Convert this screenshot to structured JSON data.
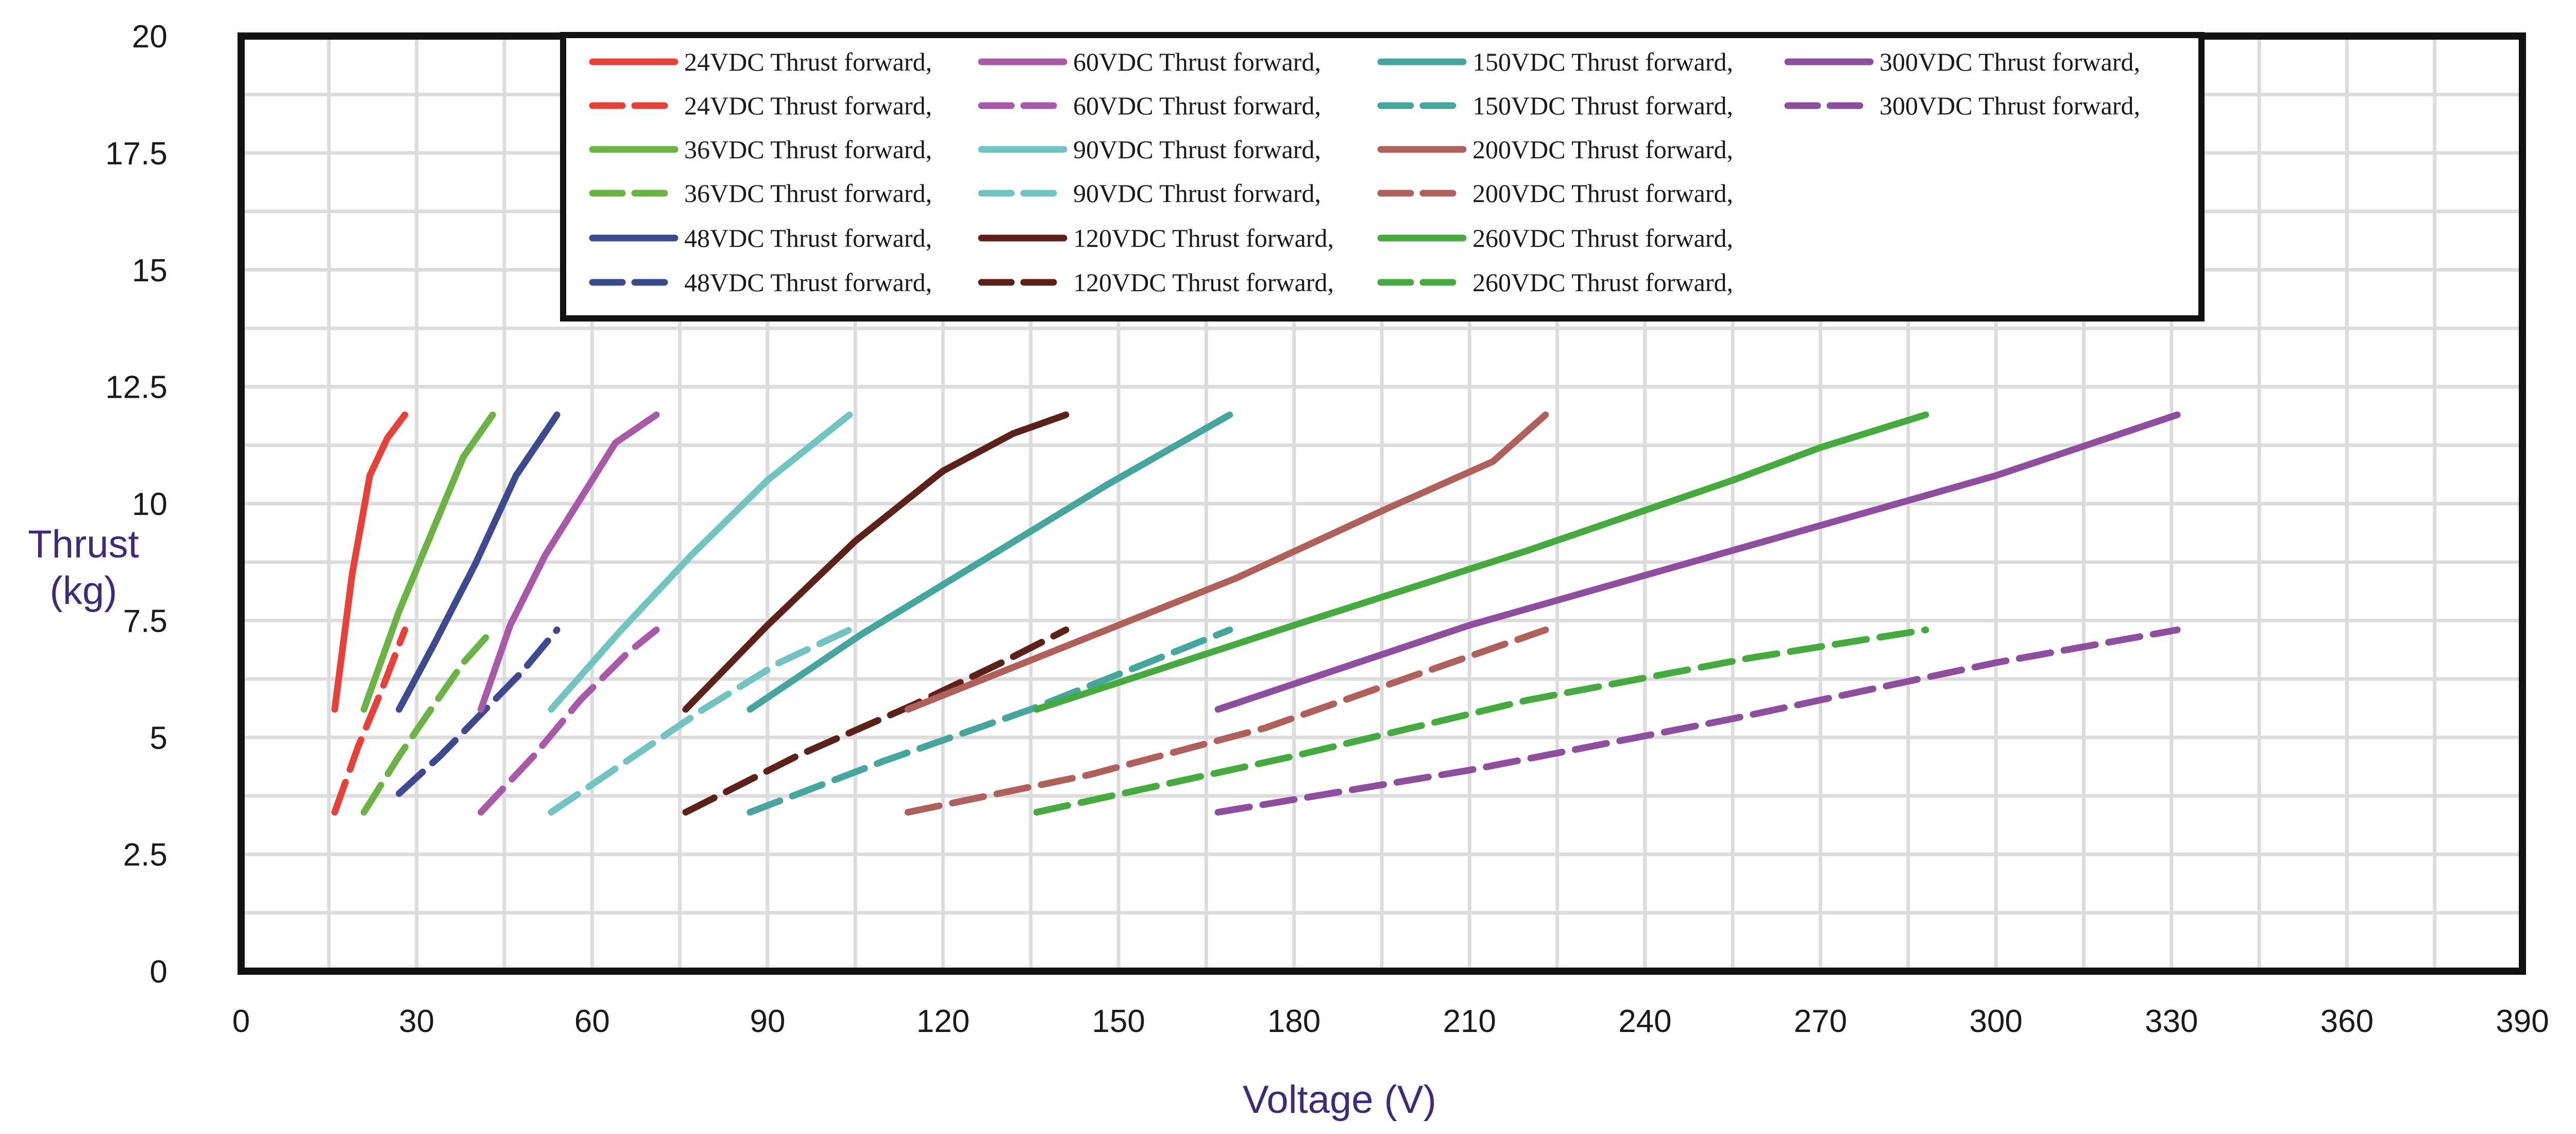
{
  "chart_data": {
    "type": "line",
    "title": "",
    "xlabel": "Voltage (V)",
    "ylabel_lines": [
      "Thrust",
      "(kg)"
    ],
    "xlim": [
      0,
      390
    ],
    "ylim": [
      0,
      20
    ],
    "x_ticks": [
      0,
      30,
      60,
      90,
      120,
      150,
      180,
      210,
      240,
      270,
      300,
      330,
      360,
      390
    ],
    "y_ticks": [
      0,
      2.5,
      5,
      7.5,
      10,
      12.5,
      15,
      17.5,
      20
    ],
    "y_tick_labels": [
      "0",
      "2.5",
      "5",
      "7.5",
      "10",
      "12.5",
      "15",
      "17.5",
      "20"
    ],
    "grid": true,
    "legend_position": "top",
    "series": [
      {
        "name": "24VDC  Thrust forward,",
        "color": "#e8413a",
        "dash": false,
        "points": [
          [
            16,
            5.6
          ],
          [
            19,
            8.5
          ],
          [
            22,
            10.6
          ],
          [
            25,
            11.4
          ],
          [
            28,
            11.9
          ]
        ]
      },
      {
        "name": "24VDC  Thrust forward,",
        "color": "#e8413a",
        "dash": true,
        "points": [
          [
            16,
            3.4
          ],
          [
            20,
            4.8
          ],
          [
            24,
            6.0
          ],
          [
            28,
            7.3
          ]
        ]
      },
      {
        "name": "36VDC  Thrust forward,",
        "color": "#6ab344",
        "dash": false,
        "points": [
          [
            21,
            5.6
          ],
          [
            27,
            7.7
          ],
          [
            33,
            9.5
          ],
          [
            38,
            11.0
          ],
          [
            43,
            11.9
          ]
        ]
      },
      {
        "name": "36VDC  Thrust forward,",
        "color": "#6ab344",
        "dash": true,
        "points": [
          [
            21,
            3.4
          ],
          [
            27,
            4.6
          ],
          [
            33,
            5.7
          ],
          [
            38,
            6.6
          ],
          [
            43,
            7.3
          ]
        ]
      },
      {
        "name": "48VDC  Thrust forward,",
        "color": "#3d4a8f",
        "dash": false,
        "points": [
          [
            27,
            5.6
          ],
          [
            33,
            7.0
          ],
          [
            40,
            8.7
          ],
          [
            47,
            10.6
          ],
          [
            54,
            11.9
          ]
        ]
      },
      {
        "name": "48VDC  Thrust forward,",
        "color": "#3d4a8f",
        "dash": true,
        "points": [
          [
            27,
            3.8
          ],
          [
            34,
            4.6
          ],
          [
            41,
            5.5
          ],
          [
            48,
            6.4
          ],
          [
            54,
            7.3
          ]
        ]
      },
      {
        "name": "60VDC  Thrust forward,",
        "color": "#a85aa8",
        "dash": false,
        "points": [
          [
            41,
            5.6
          ],
          [
            46,
            7.4
          ],
          [
            52,
            8.9
          ],
          [
            59,
            10.3
          ],
          [
            64,
            11.3
          ],
          [
            71,
            11.9
          ]
        ]
      },
      {
        "name": "60VDC  Thrust forward,",
        "color": "#a85aa8",
        "dash": true,
        "points": [
          [
            41,
            3.4
          ],
          [
            50,
            4.6
          ],
          [
            58,
            5.8
          ],
          [
            66,
            6.8
          ],
          [
            71,
            7.3
          ]
        ]
      },
      {
        "name": "90VDC  Thrust forward,",
        "color": "#72c4c0",
        "dash": false,
        "points": [
          [
            53,
            5.6
          ],
          [
            65,
            7.3
          ],
          [
            77,
            8.9
          ],
          [
            90,
            10.5
          ],
          [
            98,
            11.3
          ],
          [
            104,
            11.9
          ]
        ]
      },
      {
        "name": "90VDC  Thrust forward,",
        "color": "#72c4c0",
        "dash": true,
        "points": [
          [
            53,
            3.4
          ],
          [
            66,
            4.5
          ],
          [
            79,
            5.6
          ],
          [
            92,
            6.6
          ],
          [
            104,
            7.3
          ]
        ]
      },
      {
        "name": "120VDC Thrust forward,",
        "color": "#5c2219",
        "dash": false,
        "points": [
          [
            76,
            5.6
          ],
          [
            90,
            7.4
          ],
          [
            105,
            9.2
          ],
          [
            120,
            10.7
          ],
          [
            132,
            11.5
          ],
          [
            141,
            11.9
          ]
        ]
      },
      {
        "name": "120VDC Thrust forward,",
        "color": "#5c2219",
        "dash": true,
        "points": [
          [
            76,
            3.4
          ],
          [
            95,
            4.6
          ],
          [
            115,
            5.7
          ],
          [
            130,
            6.6
          ],
          [
            141,
            7.3
          ]
        ]
      },
      {
        "name": "150VDC Thrust forward,",
        "color": "#45a69b",
        "dash": false,
        "points": [
          [
            87,
            5.6
          ],
          [
            106,
            7.2
          ],
          [
            127,
            8.8
          ],
          [
            148,
            10.4
          ],
          [
            169,
            11.9
          ]
        ]
      },
      {
        "name": "150VDC Thrust forward,",
        "color": "#45a69b",
        "dash": true,
        "points": [
          [
            87,
            3.4
          ],
          [
            110,
            4.5
          ],
          [
            135,
            5.6
          ],
          [
            155,
            6.6
          ],
          [
            169,
            7.3
          ]
        ]
      },
      {
        "name": "200VDC Thrust forward,",
        "color": "#b0605a",
        "dash": false,
        "points": [
          [
            114,
            5.6
          ],
          [
            140,
            6.9
          ],
          [
            170,
            8.4
          ],
          [
            196,
            9.9
          ],
          [
            214,
            10.9
          ],
          [
            223,
            11.9
          ]
        ]
      },
      {
        "name": "200VDC Thrust forward,",
        "color": "#b0605a",
        "dash": true,
        "points": [
          [
            114,
            3.4
          ],
          [
            145,
            4.2
          ],
          [
            175,
            5.2
          ],
          [
            200,
            6.3
          ],
          [
            223,
            7.3
          ]
        ]
      },
      {
        "name": "260VDC Thrust forward,",
        "color": "#46ab3e",
        "dash": false,
        "points": [
          [
            136,
            5.6
          ],
          [
            180,
            7.4
          ],
          [
            220,
            9.0
          ],
          [
            255,
            10.5
          ],
          [
            270,
            11.2
          ],
          [
            288,
            11.9
          ]
        ]
      },
      {
        "name": "260VDC Thrust forward,",
        "color": "#46ab3e",
        "dash": true,
        "points": [
          [
            136,
            3.4
          ],
          [
            180,
            4.6
          ],
          [
            220,
            5.8
          ],
          [
            258,
            6.7
          ],
          [
            288,
            7.3
          ]
        ]
      },
      {
        "name": "300VDC Thrust forward,",
        "color": "#8e4e9e",
        "dash": false,
        "points": [
          [
            167,
            5.6
          ],
          [
            210,
            7.4
          ],
          [
            255,
            9.0
          ],
          [
            300,
            10.6
          ],
          [
            331,
            11.9
          ]
        ]
      },
      {
        "name": "300VDC Thrust forward,",
        "color": "#8e4e9e",
        "dash": true,
        "points": [
          [
            167,
            3.4
          ],
          [
            210,
            4.3
          ],
          [
            255,
            5.4
          ],
          [
            300,
            6.6
          ],
          [
            331,
            7.3
          ]
        ]
      }
    ]
  }
}
